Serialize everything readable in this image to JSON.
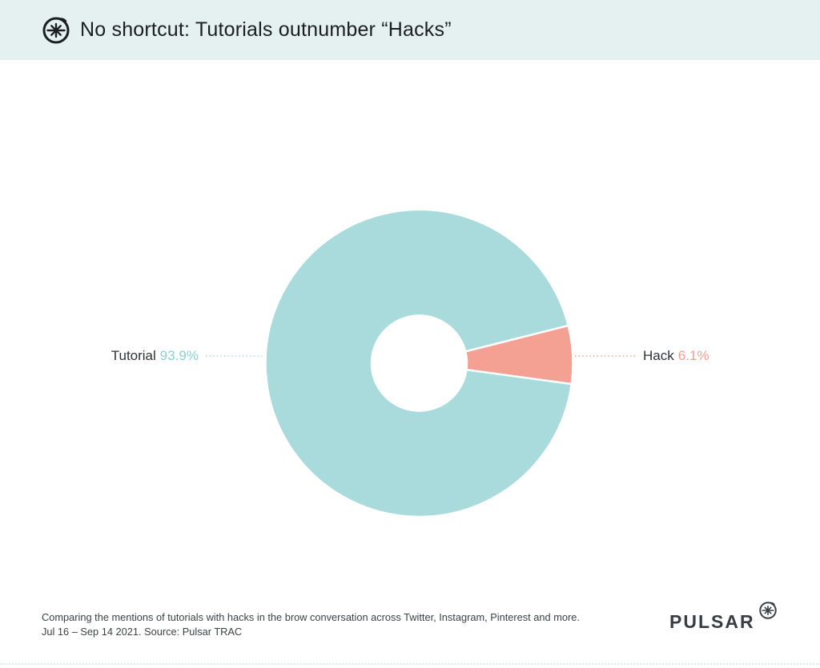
{
  "header": {
    "title": "No shortcut: Tutorials outnumber “Hacks”",
    "background_color": "#e4f1f0",
    "logo_icon": "pulsar-asterisk-icon"
  },
  "chart_data": {
    "type": "pie",
    "subtype": "donut",
    "title": "No shortcut: Tutorials outnumber “Hacks”",
    "categories": [
      "Tutorial",
      "Hack"
    ],
    "values": [
      93.9,
      6.1
    ],
    "unit": "%",
    "series_colors": [
      "#a9dadc",
      "#f4a092"
    ],
    "slice_gap_color": "#ffffff",
    "inner_radius_ratio": 0.31,
    "hack_slice_center_angle_deg": -3.2,
    "legend_position": "none",
    "data_labels": [
      {
        "category": "Tutorial",
        "value_text": "93.9%",
        "side": "left"
      },
      {
        "category": "Hack",
        "value_text": "6.1%",
        "side": "right"
      }
    ]
  },
  "callouts": {
    "left": {
      "name": "Tutorial",
      "value": "93.9%"
    },
    "right": {
      "name": "Hack",
      "value": "6.1%"
    }
  },
  "footer": {
    "caption_line1": "Comparing the mentions of tutorials with hacks in the brow conversation across Twitter, Instagram, Pinterest and more.",
    "caption_line2": "Jul 16 – Sep 14 2021. Source: Pulsar TRAC",
    "brand_wordmark": "PULSAR",
    "brand_icon": "pulsar-asterisk-icon"
  },
  "colors": {
    "teal_slice": "#a9dadc",
    "salmon_slice": "#f4a092",
    "teal_value_text": "#8ed1d3",
    "salmon_value_text": "#f49d90",
    "header_background": "#e4f1f0",
    "dark_text": "#1b1e23",
    "caption_text": "#3d4146",
    "brand_color": "#383d44"
  }
}
